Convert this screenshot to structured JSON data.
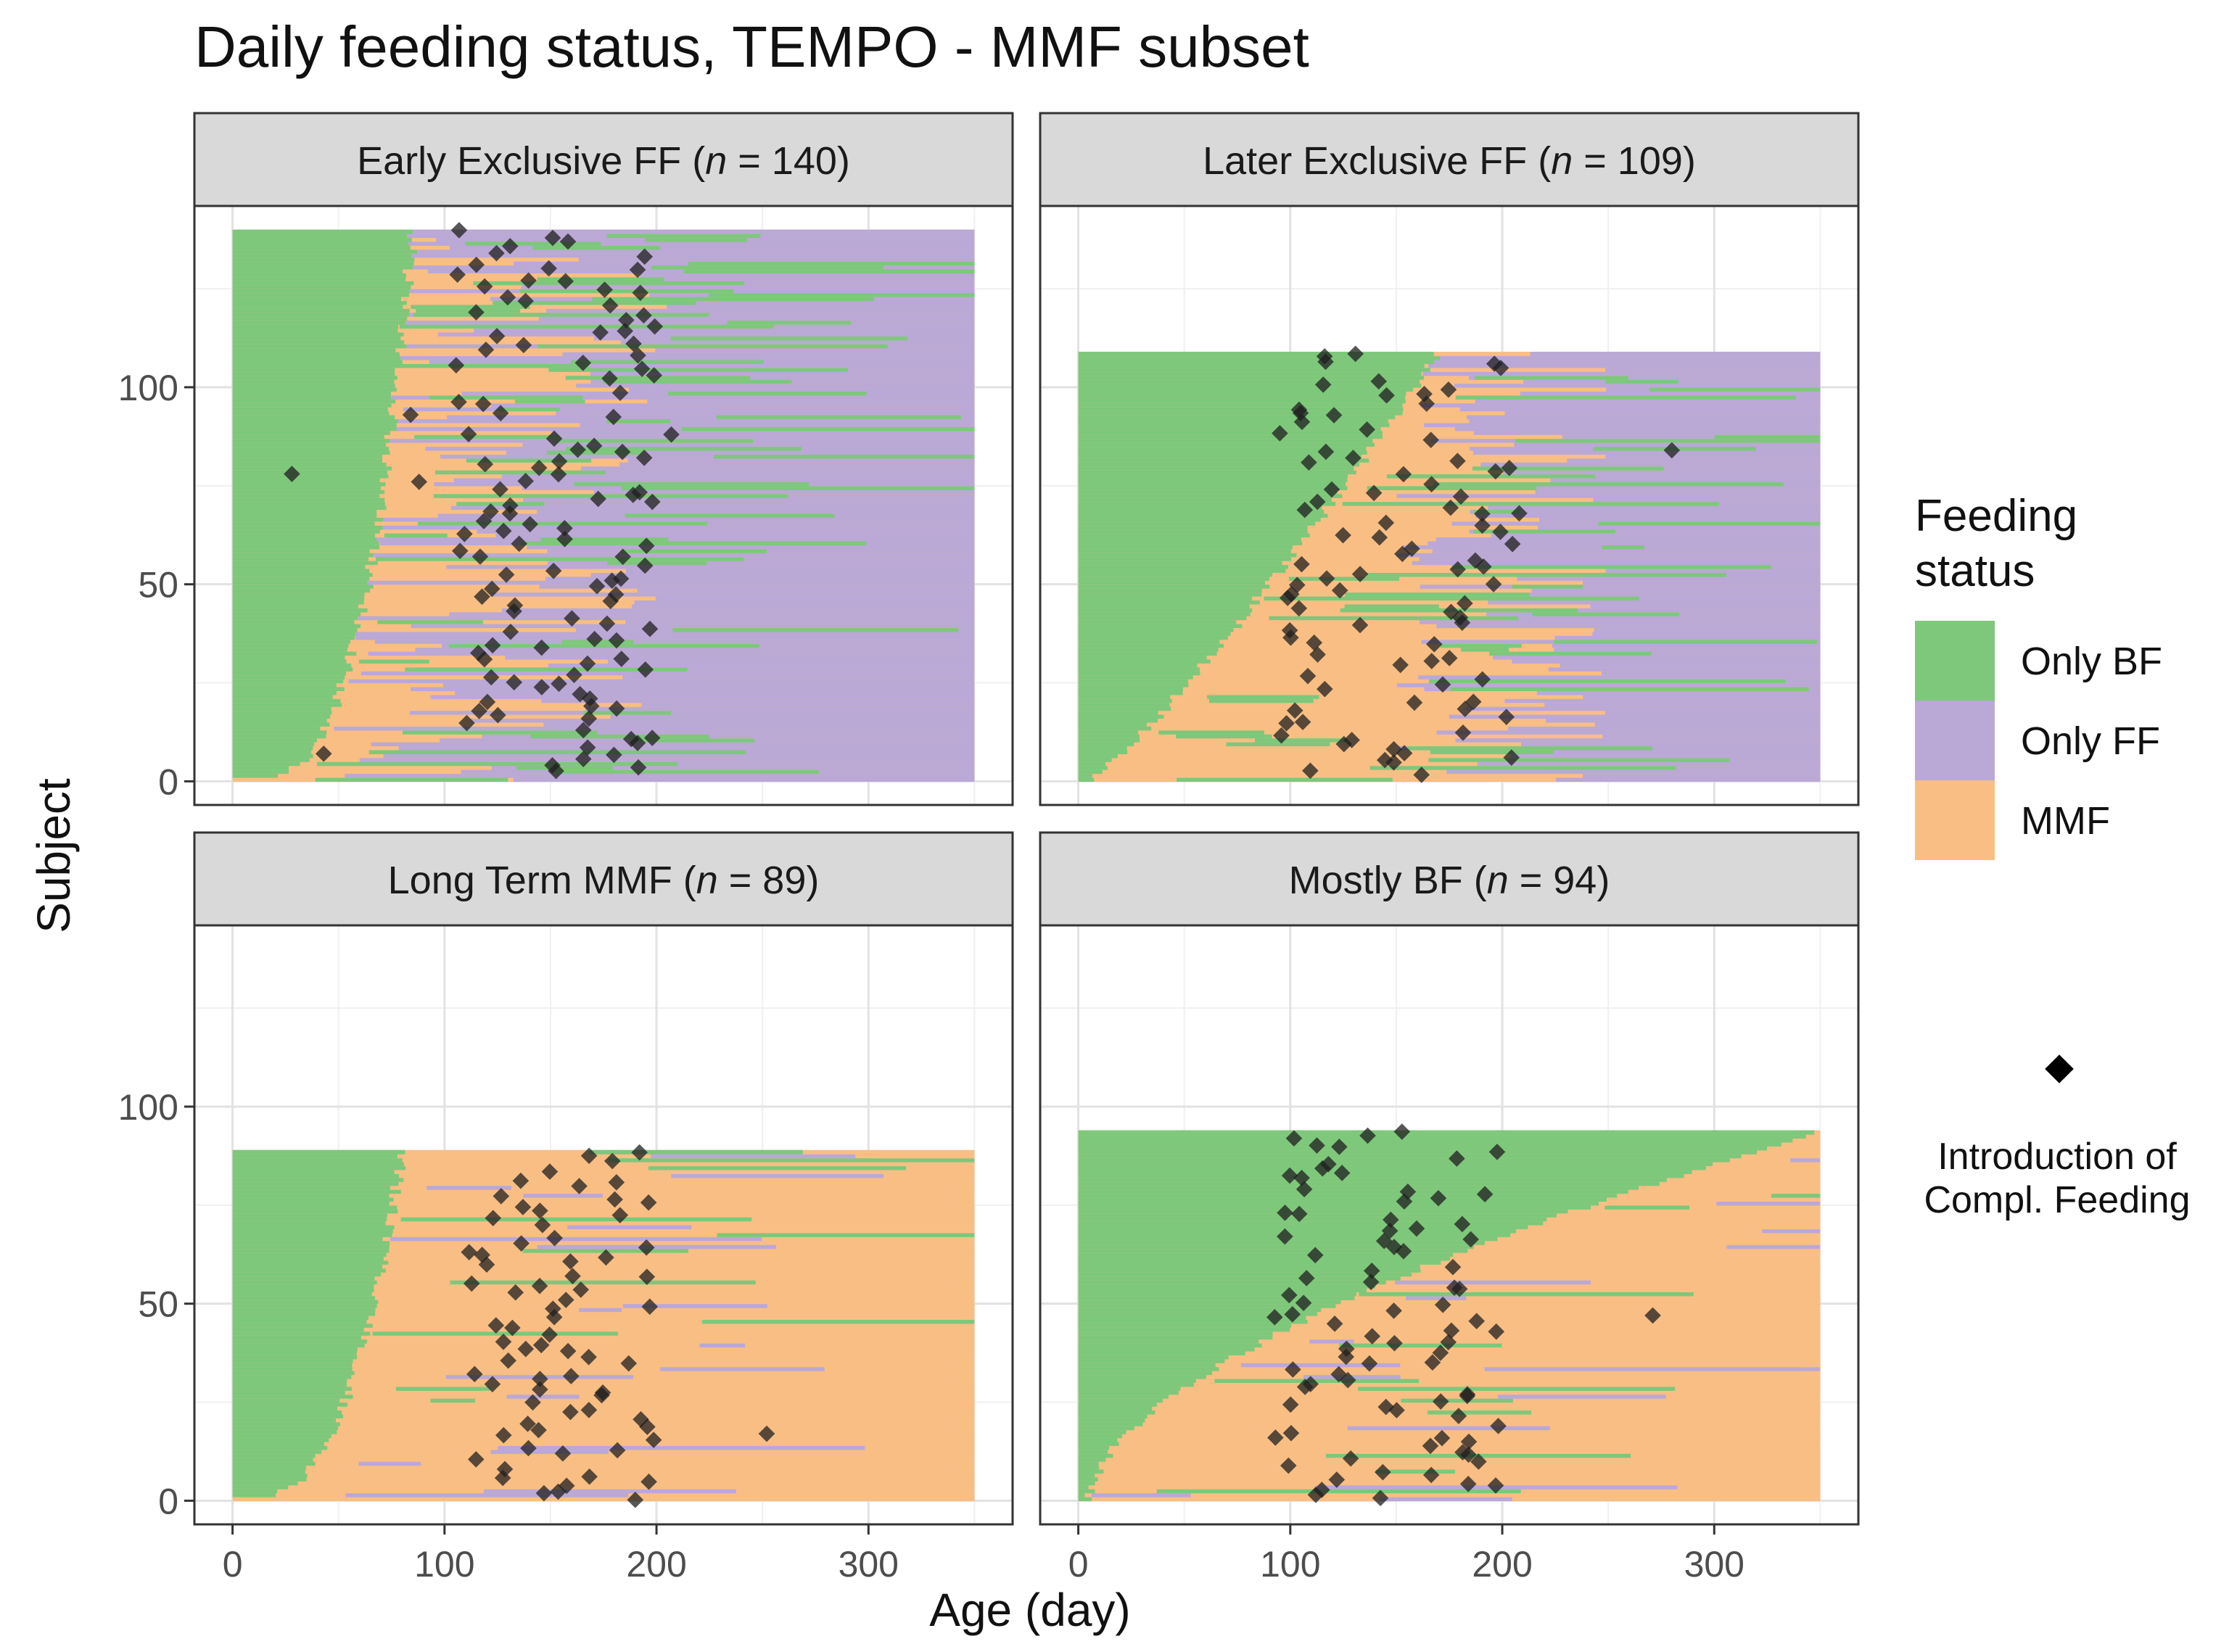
{
  "chart_data": {
    "type": "heatmap",
    "title": "Daily feeding status, TEMPO - MMF subset",
    "xlabel": "Age (day)",
    "ylabel": "Subject",
    "x_ticks": [
      "0",
      "100",
      "200",
      "300"
    ],
    "y_ticks": [
      "0",
      "50",
      "100"
    ],
    "xlim": [
      -18,
      368
    ],
    "ylim": [
      -6,
      146
    ],
    "colors": {
      "Only BF": "#7dc87b",
      "Only FF": "#baa8d6",
      "MMF": "#f9be84",
      "point": "#1f1f1f"
    },
    "legend": {
      "title_line1": "Feeding",
      "title_line2": "status",
      "entries": [
        "Only BF",
        "Only FF",
        "MMF"
      ],
      "point_label_line1": "Introduction of",
      "point_label_line2": "Compl. Feeding",
      "position": "right"
    },
    "panels": [
      {
        "pre": "Early Exclusive FF (",
        "n_label": "n",
        "post": " = 140)",
        "n": 140,
        "bf_end_start": 85,
        "bf_end_end": 0,
        "bf_shape": 0.28,
        "final_state": "Only FF",
        "trans_start": 40,
        "trans_end": 205,
        "cf_range": [
          105,
          200
        ],
        "cf_extra": [
          [
            28,
            78
          ],
          [
            43,
            7
          ],
          [
            84,
            93
          ],
          [
            88,
            76
          ],
          [
            207,
            88
          ]
        ]
      },
      {
        "pre": "Later Exclusive FF (",
        "n_label": "n",
        "post": " = 109)",
        "n": 109,
        "bf_end_start": 170,
        "bf_end_end": 5,
        "bf_shape": 0.85,
        "final_state": "Only FF",
        "trans_start": 150,
        "trans_end": 250,
        "cf_range": [
          95,
          205
        ],
        "cf_extra": [
          [
            280,
            84
          ],
          [
            208,
            68
          ]
        ]
      },
      {
        "pre": "Long Term MMF (",
        "n_label": "n",
        "post": " = 89)",
        "n": 89,
        "bf_end_start": 80,
        "bf_end_end": 0,
        "bf_shape": 0.32,
        "final_state": "MMF",
        "trans_start": 300,
        "trans_end": 380,
        "cf_range": [
          110,
          200
        ],
        "cf_extra": [
          [
            252,
            17
          ]
        ]
      },
      {
        "pre": "Mostly BF (",
        "n_label": "n",
        "post": " = 94)",
        "n": 94,
        "bf_end_start": 350,
        "bf_end_end": 5,
        "bf_shape": 1.7,
        "final_state": "MMF",
        "trans_start": 300,
        "trans_end": 380,
        "cf_range": [
          90,
          200
        ],
        "cf_extra": [
          [
            271,
            47
          ],
          [
            93,
            16
          ]
        ]
      }
    ]
  }
}
